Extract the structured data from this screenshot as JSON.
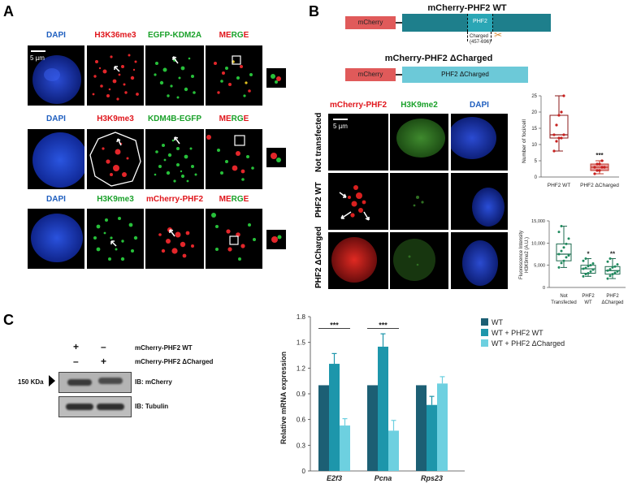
{
  "panels": {
    "a": {
      "letter": "A",
      "scale": "5 µm",
      "rows": [
        {
          "headers": [
            "DAPI",
            "H3K36me3",
            "EGFP-KDM2A",
            "MERGE"
          ]
        },
        {
          "headers": [
            "DAPI",
            "H3K9me3",
            "KDM4B-EGFP",
            "MERGE"
          ]
        },
        {
          "headers": [
            "DAPI",
            "H3K9me3",
            "mCherry-PHF2",
            "MERGE"
          ]
        }
      ]
    },
    "b": {
      "letter": "B",
      "construct_wt_title": "mCherry-PHF2 WT",
      "construct_wt_tag": "mCherry",
      "construct_wt_domain": "PHF2",
      "charged_label_1": "Charged",
      "charged_label_2": "(457-696)",
      "construct_dc_title": "mCherry-PHF2 ΔCharged",
      "construct_dc_tag": "mCherry",
      "construct_dc_body": "PHF2 ΔCharged",
      "col_headers": [
        "mCherry-PHF2",
        "H3K9me2",
        "DAPI"
      ],
      "row_labels": [
        "Not transfected",
        "PHF2 WT",
        "PHF2 ΔCharged"
      ],
      "scale": "5 µm",
      "plot1": {
        "ylabel": "Number of foci/cell",
        "yticks": [
          "0",
          "5",
          "10",
          "15",
          "20",
          "25"
        ],
        "xlabels": [
          "PHF2 WT",
          "PHF2 ΔCharged"
        ],
        "sig": "***"
      },
      "plot2": {
        "ylabel_1": "Fluorescence Intensity",
        "ylabel_2": "H3K9me2 (A.U.)",
        "yticks": [
          "0",
          "5,000",
          "10,000",
          "15,000"
        ],
        "xlabels": [
          [
            "Not",
            "Transfected"
          ],
          [
            "PHF2",
            "WT"
          ],
          [
            "PHF2",
            "ΔCharged"
          ]
        ],
        "sig": [
          "*",
          "**"
        ]
      }
    },
    "c": {
      "letter": "C",
      "wb_plus_minus_row1": [
        "+",
        "–"
      ],
      "wb_plus_minus_row2": [
        "–",
        "+"
      ],
      "wb_row1_label": "mCherry-PHF2 WT",
      "wb_row2_label": "mCherry-PHF2 ΔCharged",
      "marker": "150 KDa",
      "blot1_label": "IB: mCherry",
      "blot2_label": "IB: Tubulin"
    }
  },
  "chart_data": [
    {
      "type": "box",
      "panel": "B-top",
      "ylabel": "Number of foci/cell",
      "ylim": [
        0,
        25
      ],
      "categories": [
        "PHF2 WT",
        "PHF2 ΔCharged"
      ],
      "boxes": [
        {
          "min": 8,
          "q1": 12,
          "median": 13,
          "q3": 19,
          "max": 25
        },
        {
          "min": 1,
          "q1": 2,
          "median": 3,
          "q3": 4,
          "max": 5
        }
      ],
      "points": [
        [
          8,
          11,
          12,
          12,
          13,
          13,
          16,
          19,
          20,
          25
        ],
        [
          1,
          2,
          2,
          3,
          3,
          3,
          4,
          4,
          5
        ]
      ],
      "colors": [
        "#8b1a1a",
        "#c0392b"
      ],
      "significance": [
        "",
        "***"
      ]
    },
    {
      "type": "box",
      "panel": "B-bottom",
      "ylabel": "Fluorescence Intensity H3K9me2 (A.U.)",
      "ylim": [
        0,
        15000
      ],
      "categories": [
        "Not Transfected",
        "PHF2 WT",
        "PHF2 ΔCharged"
      ],
      "boxes": [
        {
          "min": 4500,
          "q1": 6000,
          "median": 7500,
          "q3": 9800,
          "max": 13800
        },
        {
          "min": 2500,
          "q1": 3200,
          "median": 4200,
          "q3": 5000,
          "max": 6500
        },
        {
          "min": 2000,
          "q1": 3000,
          "median": 3800,
          "q3": 4700,
          "max": 6500
        }
      ],
      "points": [
        [
          4500,
          5500,
          6000,
          6800,
          7200,
          7500,
          8200,
          9000,
          9800,
          11000,
          12500,
          13800
        ],
        [
          2500,
          3000,
          3200,
          3600,
          4000,
          4200,
          4400,
          4800,
          5000,
          5400,
          6000,
          6500
        ],
        [
          2000,
          2600,
          3000,
          3300,
          3600,
          3800,
          4100,
          4500,
          4700,
          5200,
          5800,
          6500
        ]
      ],
      "colors": [
        "#1e6b4f",
        "#1e6b4f",
        "#1e6b4f"
      ],
      "significance": [
        "",
        "*",
        "**"
      ]
    },
    {
      "type": "bar",
      "panel": "C",
      "ylabel": "Relative mRNA expression",
      "ylim": [
        0,
        1.8
      ],
      "yticks": [
        0,
        0.3,
        0.6,
        0.9,
        1.2,
        1.5,
        1.8
      ],
      "categories": [
        "E2f3",
        "Pcna",
        "Rps23"
      ],
      "series": [
        {
          "name": "WT",
          "values": [
            1.0,
            1.0,
            1.0
          ],
          "errors": [
            0,
            0,
            0
          ],
          "color": "#1c5f74"
        },
        {
          "name": "WT + PHF2 WT",
          "values": [
            1.25,
            1.45,
            0.77
          ],
          "errors": [
            0.12,
            0.15,
            0.1
          ],
          "color": "#1d96ab"
        },
        {
          "name": "WT + PHF2 ΔCharged",
          "values": [
            0.53,
            0.47,
            1.02
          ],
          "errors": [
            0.08,
            0.12,
            0.08
          ],
          "color": "#6dd0e0"
        }
      ],
      "significance": [
        "***",
        "***",
        ""
      ],
      "legend": "top-right"
    }
  ]
}
